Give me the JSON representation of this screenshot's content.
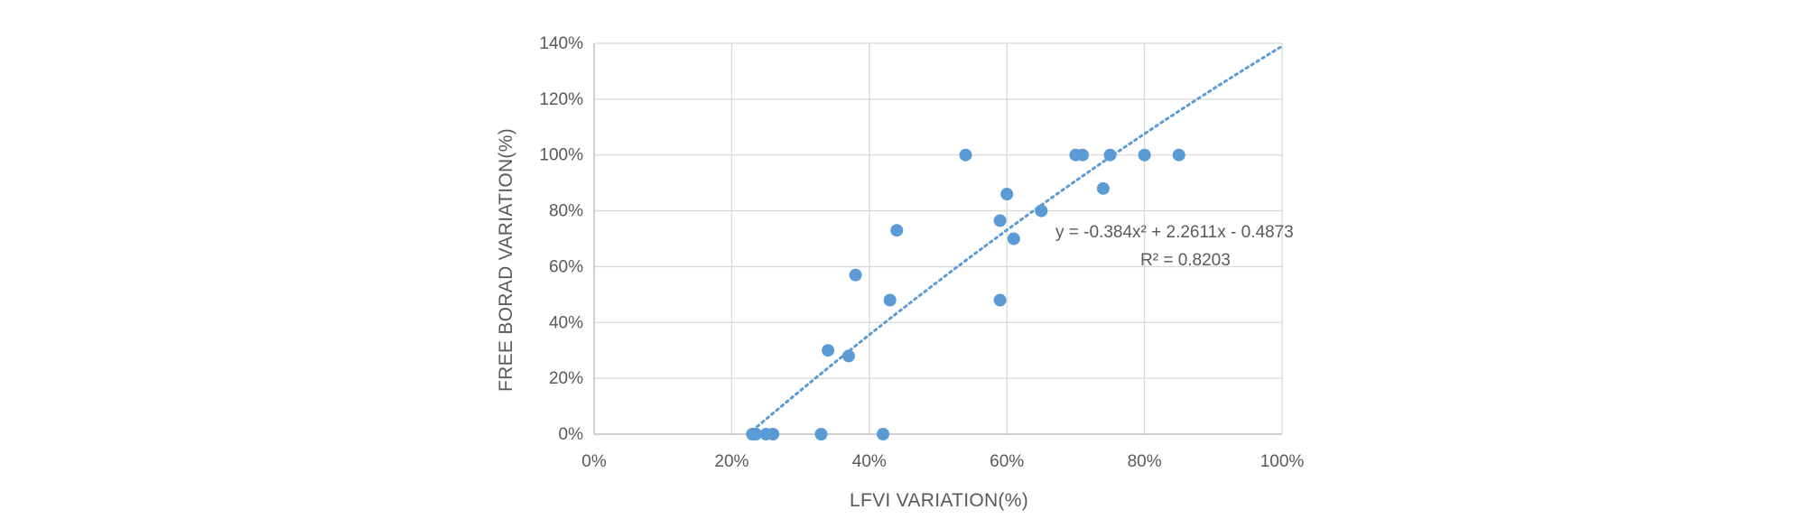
{
  "chart_data": {
    "type": "scatter",
    "title": "",
    "xlabel": "LFVI VARIATION(%)",
    "ylabel": "FREE BORAD VARIATION(%)",
    "xlim": [
      0,
      1
    ],
    "ylim": [
      0,
      1.4
    ],
    "x_ticks": [
      "0%",
      "20%",
      "40%",
      "60%",
      "80%",
      "100%"
    ],
    "y_ticks": [
      "0%",
      "20%",
      "40%",
      "60%",
      "80%",
      "100%",
      "120%",
      "140%"
    ],
    "grid": true,
    "legend": "none",
    "series": [
      {
        "color": "#5b9bd5",
        "points": [
          {
            "x": 0.23,
            "y": 0.0
          },
          {
            "x": 0.235,
            "y": 0.0
          },
          {
            "x": 0.25,
            "y": 0.0
          },
          {
            "x": 0.26,
            "y": 0.0
          },
          {
            "x": 0.33,
            "y": 0.0
          },
          {
            "x": 0.42,
            "y": 0.0
          },
          {
            "x": 0.34,
            "y": 0.3
          },
          {
            "x": 0.37,
            "y": 0.28
          },
          {
            "x": 0.38,
            "y": 0.57
          },
          {
            "x": 0.43,
            "y": 0.48
          },
          {
            "x": 0.44,
            "y": 0.73
          },
          {
            "x": 0.54,
            "y": 1.0
          },
          {
            "x": 0.59,
            "y": 0.48
          },
          {
            "x": 0.59,
            "y": 0.765
          },
          {
            "x": 0.6,
            "y": 0.86
          },
          {
            "x": 0.61,
            "y": 0.7
          },
          {
            "x": 0.65,
            "y": 0.8
          },
          {
            "x": 0.7,
            "y": 1.0
          },
          {
            "x": 0.71,
            "y": 1.0
          },
          {
            "x": 0.74,
            "y": 0.88
          },
          {
            "x": 0.75,
            "y": 1.0
          },
          {
            "x": 0.8,
            "y": 1.0
          },
          {
            "x": 0.85,
            "y": 1.0
          }
        ]
      }
    ],
    "trendline": {
      "type": "polynomial-2",
      "coefficients": {
        "a": -0.384,
        "b": 2.2611,
        "c": -0.4873
      },
      "x_range": [
        0.23,
        1.0
      ],
      "color": "#5b9bd5",
      "style": "dotted",
      "equation_label": "y = -0.384x² + 2.2611x - 0.4873",
      "r2_label": "R² = 0.8203"
    }
  }
}
